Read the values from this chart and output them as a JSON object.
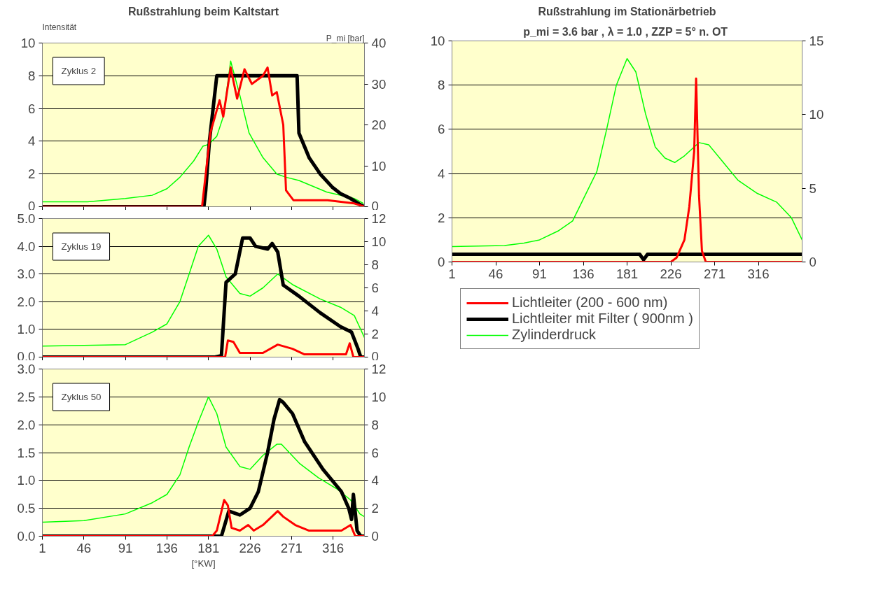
{
  "chart_data": [
    {
      "type": "line",
      "title": "Rußstrahlung beim Kaltstart",
      "ylabel": "Intensität",
      "y2label": "P_mi [bar]",
      "annotations": [
        "Zyklus 2"
      ],
      "tick_labels": "y",
      "grid": "y",
      "xlim": [
        1,
        350
      ],
      "xticks": [
        1,
        46,
        91,
        136,
        181,
        226,
        271,
        316
      ],
      "ylim": [
        0,
        10
      ],
      "yticks": [
        0,
        2,
        4,
        6,
        8,
        10
      ],
      "y2lim": [
        0,
        40
      ],
      "y2ticks": [
        0,
        10,
        20,
        30,
        40
      ],
      "series": [
        {
          "color": "#ff0000",
          "x": [
            1,
            174,
            177,
            183,
            193,
            197,
            205,
            212,
            220,
            228,
            240,
            245,
            250,
            255,
            262,
            265,
            273,
            310,
            339,
            350
          ],
          "values": [
            0,
            0,
            1.5,
            4.5,
            6.5,
            5.5,
            8.5,
            6.6,
            8.4,
            7.5,
            8,
            8.5,
            6.8,
            7,
            5,
            1,
            0.4,
            0.4,
            0.2,
            0
          ]
        },
        {
          "color": "#000000",
          "x": [
            1,
            176,
            178,
            182,
            186,
            190,
            277,
            279,
            290,
            302,
            315,
            324,
            335,
            346,
            350
          ],
          "values": [
            0,
            0,
            1,
            4,
            6,
            8,
            8,
            4.5,
            3,
            2,
            1.2,
            0.8,
            0.5,
            0.1,
            0
          ]
        },
        {
          "color": "#00ff00",
          "axis": "y2",
          "x": [
            1,
            50,
            91,
            120,
            136,
            150,
            165,
            175,
            181,
            190,
            197,
            205,
            215,
            225,
            240,
            255,
            265,
            279,
            309,
            339,
            349
          ],
          "values": [
            1.2,
            1.2,
            2,
            2.8,
            4.4,
            7.2,
            11.2,
            14.8,
            15.2,
            17.2,
            22,
            35.6,
            27.2,
            18,
            12,
            8,
            7.2,
            6.4,
            3.6,
            2,
            0.8
          ]
        }
      ]
    },
    {
      "type": "line",
      "annotations": [
        "Zyklus 19"
      ],
      "tick_labels": "y",
      "grid": "y",
      "xlim": [
        1,
        350
      ],
      "xticks": [
        1,
        46,
        91,
        136,
        181,
        226,
        271,
        316
      ],
      "ylim": [
        0,
        5
      ],
      "yticks": [
        {
          "value": 0,
          "label": "0.0"
        },
        {
          "value": 1,
          "label": "1.0"
        },
        {
          "value": 2,
          "label": "2.0"
        },
        {
          "value": 3,
          "label": "3.0"
        },
        {
          "value": 4,
          "label": "4.0"
        },
        {
          "value": 5,
          "label": "5.0"
        }
      ],
      "y2lim": [
        0,
        12
      ],
      "y2ticks": [
        0,
        2,
        4,
        6,
        8,
        10,
        12
      ],
      "series": [
        {
          "color": "#ff0000",
          "x": [
            1,
            199,
            202,
            208,
            215,
            240,
            256,
            272,
            285,
            330,
            334,
            338,
            350
          ],
          "values": [
            0,
            0,
            0.6,
            0.55,
            0.15,
            0.15,
            0.45,
            0.3,
            0.1,
            0.1,
            0.5,
            0,
            0
          ]
        },
        {
          "color": "#000000",
          "x": [
            1,
            188,
            195,
            200,
            210,
            218,
            226,
            232,
            245,
            250,
            256,
            262,
            279,
            302,
            324,
            336,
            343,
            346,
            350
          ],
          "values": [
            0,
            0,
            0.05,
            2.7,
            3.0,
            4.3,
            4.3,
            4.0,
            3.9,
            4.1,
            3.8,
            2.6,
            2.2,
            1.6,
            1.1,
            0.9,
            0.3,
            0,
            0
          ]
        },
        {
          "color": "#00ff00",
          "axis": "y2",
          "x": [
            1,
            91,
            120,
            136,
            150,
            160,
            170,
            181,
            190,
            200,
            215,
            226,
            240,
            256,
            273,
            302,
            324,
            339,
            350
          ],
          "values": [
            0.96,
            1.08,
            2.16,
            2.88,
            4.8,
            7.2,
            9.6,
            10.56,
            9.36,
            6.96,
            5.52,
            5.28,
            6,
            7.2,
            6.24,
            5.04,
            4.32,
            3.6,
            1.68
          ]
        }
      ]
    },
    {
      "type": "line",
      "xlabel": "[°KW]",
      "annotations": [
        "Zyklus 50"
      ],
      "grid": "y",
      "xlim": [
        1,
        350
      ],
      "xticks": [
        1,
        46,
        91,
        136,
        181,
        226,
        271,
        316
      ],
      "ylim": [
        0,
        3
      ],
      "yticks": [
        {
          "value": 0,
          "label": "0.0"
        },
        {
          "value": 0.5,
          "label": "0.5"
        },
        {
          "value": 1,
          "label": "1.0"
        },
        {
          "value": 1.5,
          "label": "1.5"
        },
        {
          "value": 2,
          "label": "2.0"
        },
        {
          "value": 2.5,
          "label": "2.5"
        },
        {
          "value": 3,
          "label": "3.0"
        }
      ],
      "y2lim": [
        0,
        12
      ],
      "y2ticks": [
        0,
        2,
        4,
        6,
        8,
        10,
        12
      ],
      "series": [
        {
          "color": "#ff0000",
          "x": [
            1,
            185,
            190,
            198,
            202,
            206,
            215,
            224,
            230,
            240,
            256,
            262,
            275,
            290,
            325,
            335,
            340,
            350
          ],
          "values": [
            0,
            0,
            0.1,
            0.65,
            0.55,
            0.15,
            0.1,
            0.2,
            0.1,
            0.2,
            0.45,
            0.35,
            0.2,
            0.1,
            0.1,
            0.2,
            0,
            0
          ]
        },
        {
          "color": "#000000",
          "x": [
            1,
            195,
            203,
            215,
            226,
            235,
            245,
            252,
            258,
            262,
            272,
            285,
            305,
            325,
            333,
            336,
            338,
            342,
            346,
            350
          ],
          "values": [
            0,
            0,
            0.45,
            0.38,
            0.5,
            0.8,
            1.5,
            2.1,
            2.45,
            2.4,
            2.2,
            1.7,
            1.2,
            0.8,
            0.5,
            0.3,
            0.75,
            0.1,
            0,
            0
          ]
        },
        {
          "color": "#00ff00",
          "axis": "y2",
          "x": [
            1,
            46,
            91,
            120,
            136,
            150,
            160,
            170,
            181,
            190,
            200,
            215,
            226,
            240,
            255,
            260,
            280,
            300,
            320,
            335,
            345,
            350
          ],
          "values": [
            1,
            1.12,
            1.6,
            2.4,
            3,
            4.4,
            6.4,
            8.2,
            10,
            8.8,
            6.4,
            5,
            4.8,
            5.8,
            6.6,
            6.6,
            5.2,
            4.2,
            3.4,
            2.6,
            1.6,
            1.4
          ]
        }
      ]
    },
    {
      "type": "line",
      "title": "Rußstrahlung im Stationärbetrieb",
      "subtitle": "p_mi = 3.6 bar , λ = 1.0  , ZZP = 5° n. OT",
      "legend": "bottom",
      "grid": "y",
      "xlim": [
        1,
        361
      ],
      "xticks": [
        1,
        46,
        91,
        136,
        181,
        226,
        271,
        316
      ],
      "ylim": [
        0,
        10
      ],
      "yticks": [
        0,
        2,
        4,
        6,
        8,
        10
      ],
      "y2lim": [
        0,
        15
      ],
      "y2ticks": [
        0,
        5,
        10,
        15
      ],
      "series": [
        {
          "name": "Lichtleiter (200 - 600 nm)",
          "color": "#ff0000",
          "x": [
            1,
            226,
            232,
            240,
            245,
            250,
            252,
            255,
            258,
            262,
            361
          ],
          "values": [
            0,
            0,
            0.2,
            1,
            2.5,
            5,
            8.3,
            3,
            0.5,
            0,
            0
          ]
        },
        {
          "name": "Lichtleiter mit Filter ( 900nm )",
          "color": "#000000",
          "x": [
            1,
            194,
            198,
            202,
            361
          ],
          "values": [
            0.35,
            0.35,
            0.1,
            0.35,
            0.35
          ]
        },
        {
          "name": "Zylinderdruck",
          "color": "#00ff00",
          "axis": "y2",
          "x": [
            1,
            55,
            75,
            91,
            110,
            125,
            150,
            160,
            170,
            181,
            190,
            200,
            210,
            220,
            230,
            240,
            255,
            265,
            280,
            295,
            315,
            335,
            350,
            361
          ],
          "values": [
            1.05,
            1.12,
            1.28,
            1.5,
            2.1,
            2.78,
            6.15,
            9,
            12,
            13.8,
            12.9,
            10.05,
            7.8,
            7.05,
            6.75,
            7.2,
            8.1,
            7.95,
            6.75,
            5.55,
            4.65,
            4.05,
            3,
            1.5
          ]
        }
      ]
    }
  ]
}
